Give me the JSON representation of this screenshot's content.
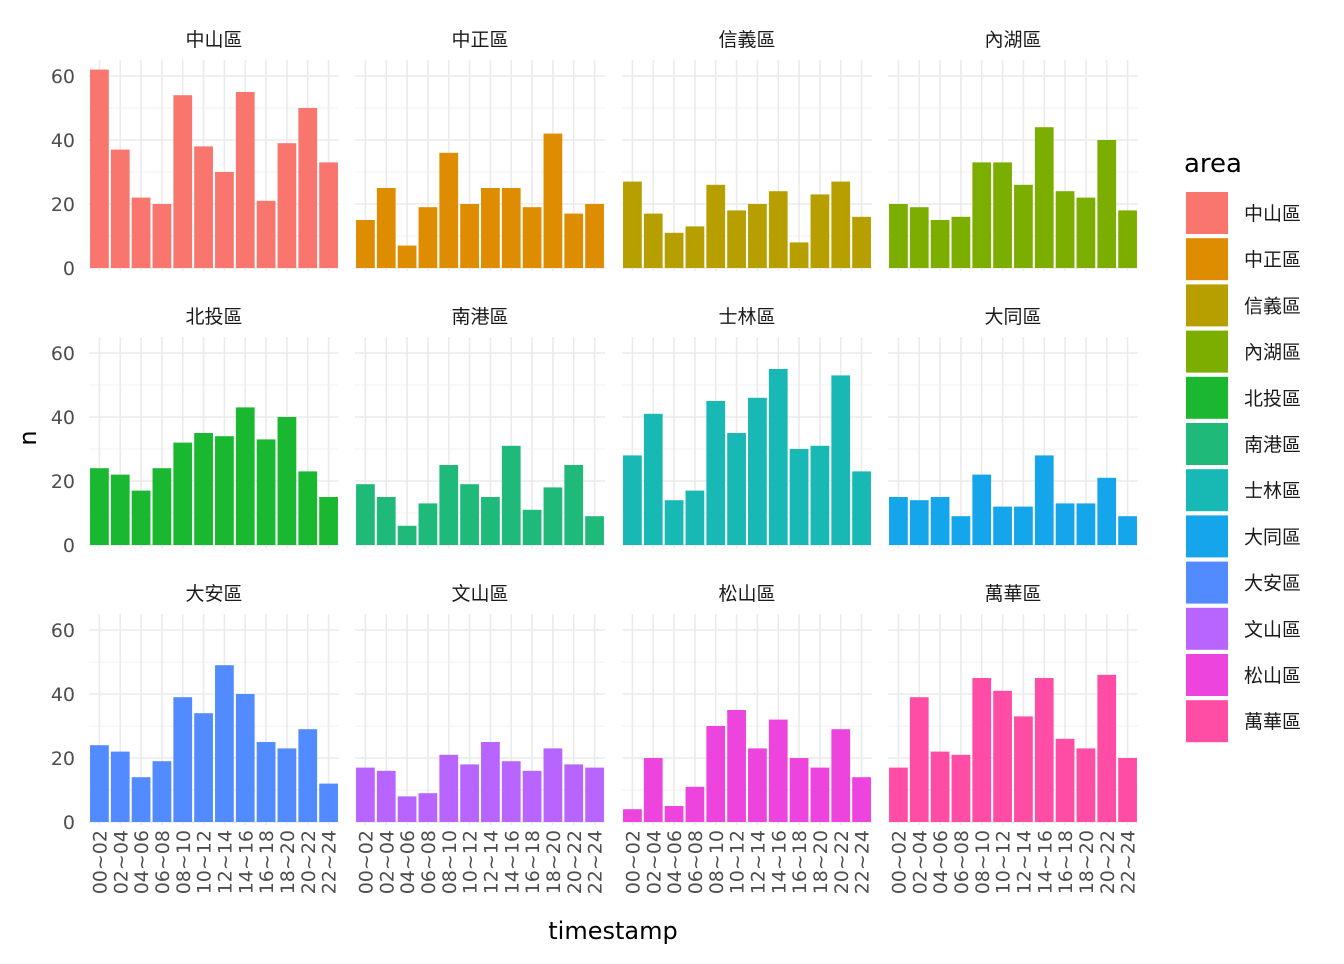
{
  "chart_data": {
    "type": "bar",
    "layout": "facet_wrap",
    "facet_columns": 4,
    "xlabel": "timestamp",
    "ylabel": "n",
    "ylim": [
      0,
      65
    ],
    "y_ticks": [
      0,
      20,
      40,
      60
    ],
    "grid": true,
    "legend": {
      "title": "area",
      "placement": "right"
    },
    "categories": [
      "00~02",
      "02~04",
      "04~06",
      "06~08",
      "08~10",
      "10~12",
      "12~14",
      "14~16",
      "16~18",
      "18~20",
      "20~22",
      "22~24"
    ],
    "series": [
      {
        "name": "中山區",
        "color": "#F8766D",
        "values": [
          62,
          37,
          22,
          20,
          54,
          38,
          30,
          55,
          21,
          39,
          50,
          33
        ]
      },
      {
        "name": "中正區",
        "color": "#DE8C00",
        "values": [
          15,
          25,
          7,
          19,
          36,
          20,
          25,
          25,
          19,
          42,
          17,
          20
        ]
      },
      {
        "name": "信義區",
        "color": "#B79F00",
        "values": [
          27,
          17,
          11,
          13,
          26,
          18,
          20,
          24,
          8,
          23,
          27,
          16
        ]
      },
      {
        "name": "內湖區",
        "color": "#7CAE00",
        "values": [
          20,
          19,
          15,
          16,
          33,
          33,
          26,
          44,
          24,
          22,
          40,
          18
        ]
      },
      {
        "name": "北投區",
        "color": "#19B830",
        "values": [
          24,
          22,
          17,
          24,
          32,
          35,
          34,
          43,
          33,
          40,
          23,
          15
        ]
      },
      {
        "name": "南港區",
        "color": "#1FBA79",
        "values": [
          19,
          15,
          6,
          13,
          25,
          19,
          15,
          31,
          11,
          18,
          25,
          9
        ]
      },
      {
        "name": "士林區",
        "color": "#18B8B5",
        "values": [
          28,
          41,
          14,
          17,
          45,
          35,
          46,
          55,
          30,
          31,
          53,
          23
        ]
      },
      {
        "name": "大同區",
        "color": "#14A5EB",
        "values": [
          15,
          14,
          15,
          9,
          22,
          12,
          12,
          28,
          13,
          13,
          21,
          9
        ]
      },
      {
        "name": "大安區",
        "color": "#528BFF",
        "values": [
          24,
          22,
          14,
          19,
          39,
          34,
          49,
          40,
          25,
          23,
          29,
          12
        ]
      },
      {
        "name": "文山區",
        "color": "#B865FF",
        "values": [
          17,
          16,
          8,
          9,
          21,
          18,
          25,
          19,
          16,
          23,
          18,
          17
        ]
      },
      {
        "name": "松山區",
        "color": "#EE44DE",
        "values": [
          4,
          20,
          5,
          11,
          30,
          35,
          23,
          32,
          20,
          17,
          29,
          14
        ]
      },
      {
        "name": "萬華區",
        "color": "#FF4DA5",
        "values": [
          17,
          39,
          22,
          21,
          45,
          41,
          33,
          45,
          26,
          23,
          46,
          20
        ]
      }
    ]
  }
}
